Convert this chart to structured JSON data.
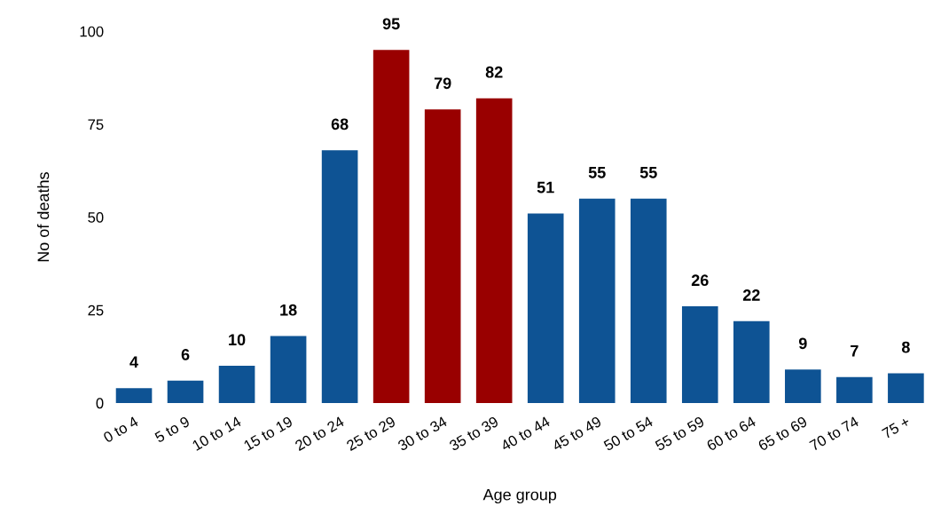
{
  "chart_data": {
    "type": "bar",
    "xlabel": "Age group",
    "ylabel": "No of deaths",
    "categories": [
      "0 to 4",
      "5 to 9",
      "10 to 14",
      "15 to 19",
      "20 to 24",
      "25 to 29",
      "30 to 34",
      "35 to 39",
      "40 to 44",
      "45 to 49",
      "50 to 54",
      "55 to 59",
      "60 to 64",
      "65 to 69",
      "70 to 74",
      "75 +"
    ],
    "values": [
      4,
      6,
      10,
      18,
      68,
      95,
      79,
      82,
      51,
      55,
      55,
      26,
      22,
      9,
      7,
      8
    ],
    "colors": [
      "#0e5394",
      "#0e5394",
      "#0e5394",
      "#0e5394",
      "#0e5394",
      "#990000",
      "#990000",
      "#990000",
      "#0e5394",
      "#0e5394",
      "#0e5394",
      "#0e5394",
      "#0e5394",
      "#0e5394",
      "#0e5394",
      "#0e5394"
    ],
    "ylim": [
      0,
      100
    ],
    "yticks": [
      0,
      25,
      50,
      75,
      100
    ],
    "grid": false,
    "data_labels": true
  }
}
